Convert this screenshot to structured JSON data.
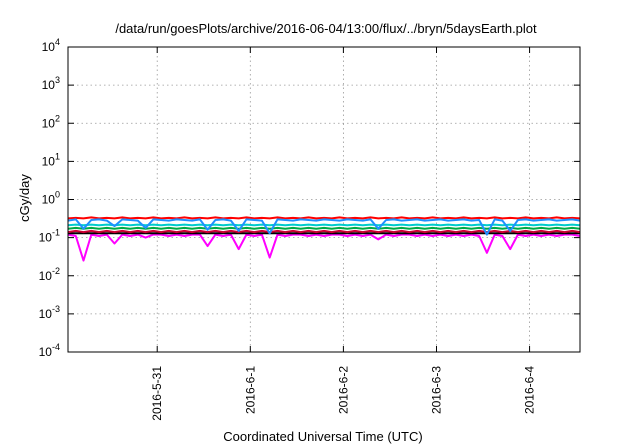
{
  "chart_data": {
    "type": "line",
    "title": "/data/run/goesPlots/archive/2016-06-04/13:00/flux/../bryn/5daysEarth.plot",
    "xlabel": "Coordinated Universal Time (UTC)",
    "ylabel": "cGy/day",
    "yscale": "log",
    "ylim": [
      0.0001,
      10000
    ],
    "xlim": [
      "2016-05-30 01:00",
      "2016-06-04 13:00"
    ],
    "x_ticks": [
      {
        "label": "2016-5-31",
        "value": "2016-05-31"
      },
      {
        "label": "2016-6-1",
        "value": "2016-06-01"
      },
      {
        "label": "2016-6-2",
        "value": "2016-06-02"
      },
      {
        "label": "2016-6-3",
        "value": "2016-06-03"
      },
      {
        "label": "2016-6-4",
        "value": "2016-06-04"
      }
    ],
    "y_ticks": [
      {
        "base": "10",
        "exp": "-4",
        "value": 0.0001
      },
      {
        "base": "10",
        "exp": "-3",
        "value": 0.001
      },
      {
        "base": "10",
        "exp": "-2",
        "value": 0.01
      },
      {
        "base": "10",
        "exp": "-1",
        "value": 0.1
      },
      {
        "base": "10",
        "exp": "0",
        "value": 1
      },
      {
        "base": "10",
        "exp": "1",
        "value": 10
      },
      {
        "base": "10",
        "exp": "2",
        "value": 100
      },
      {
        "base": "10",
        "exp": "3",
        "value": 1000
      },
      {
        "base": "10",
        "exp": "4",
        "value": 10000
      }
    ],
    "grid": true,
    "x": [
      "2016-05-30 01:00",
      "2016-05-30 03:00",
      "2016-05-30 05:00",
      "2016-05-30 07:00",
      "2016-05-30 09:00",
      "2016-05-30 11:00",
      "2016-05-30 13:00",
      "2016-05-30 15:00",
      "2016-05-30 17:00",
      "2016-05-30 19:00",
      "2016-05-30 21:00",
      "2016-05-30 23:00",
      "2016-05-31 01:00",
      "2016-05-31 03:00",
      "2016-05-31 05:00",
      "2016-05-31 07:00",
      "2016-05-31 09:00",
      "2016-05-31 11:00",
      "2016-05-31 13:00",
      "2016-05-31 15:00",
      "2016-05-31 17:00",
      "2016-05-31 19:00",
      "2016-05-31 21:00",
      "2016-05-31 23:00",
      "2016-06-01 01:00",
      "2016-06-01 03:00",
      "2016-06-01 05:00",
      "2016-06-01 07:00",
      "2016-06-01 09:00",
      "2016-06-01 11:00",
      "2016-06-01 13:00",
      "2016-06-01 15:00",
      "2016-06-01 17:00",
      "2016-06-01 19:00",
      "2016-06-01 21:00",
      "2016-06-01 23:00",
      "2016-06-02 01:00",
      "2016-06-02 03:00",
      "2016-06-02 05:00",
      "2016-06-02 07:00",
      "2016-06-02 09:00",
      "2016-06-02 11:00",
      "2016-06-02 13:00",
      "2016-06-02 15:00",
      "2016-06-02 17:00",
      "2016-06-02 19:00",
      "2016-06-02 21:00",
      "2016-06-02 23:00",
      "2016-06-03 01:00",
      "2016-06-03 03:00",
      "2016-06-03 05:00",
      "2016-06-03 07:00",
      "2016-06-03 09:00",
      "2016-06-03 11:00",
      "2016-06-03 13:00",
      "2016-06-03 15:00",
      "2016-06-03 17:00",
      "2016-06-03 19:00",
      "2016-06-03 21:00",
      "2016-06-03 23:00",
      "2016-06-04 01:00",
      "2016-06-04 03:00",
      "2016-06-04 05:00",
      "2016-06-04 07:00",
      "2016-06-04 09:00",
      "2016-06-04 11:00",
      "2016-06-04 13:00"
    ],
    "series": [
      {
        "color": "#ff00ff",
        "values": [
          0.12,
          0.11,
          0.025,
          0.12,
          0.11,
          0.12,
          0.07,
          0.12,
          0.11,
          0.12,
          0.1,
          0.12,
          0.12,
          0.11,
          0.12,
          0.11,
          0.12,
          0.12,
          0.06,
          0.12,
          0.11,
          0.12,
          0.05,
          0.12,
          0.11,
          0.12,
          0.03,
          0.12,
          0.11,
          0.12,
          0.12,
          0.11,
          0.12,
          0.11,
          0.12,
          0.12,
          0.11,
          0.12,
          0.11,
          0.12,
          0.09,
          0.12,
          0.11,
          0.12,
          0.12,
          0.11,
          0.12,
          0.11,
          0.12,
          0.11,
          0.12,
          0.11,
          0.12,
          0.11,
          0.04,
          0.12,
          0.11,
          0.05,
          0.12,
          0.11,
          0.12,
          0.11,
          0.12,
          0.11,
          0.12,
          0.12,
          0.11
        ]
      },
      {
        "color": "#000000",
        "values": [
          0.13,
          0.13,
          0.13,
          0.13,
          0.13,
          0.13,
          0.13,
          0.13,
          0.13,
          0.13,
          0.13,
          0.13,
          0.13,
          0.13,
          0.13,
          0.13,
          0.13,
          0.13,
          0.13,
          0.13,
          0.13,
          0.13,
          0.13,
          0.13,
          0.13,
          0.13,
          0.13,
          0.13,
          0.13,
          0.13,
          0.13,
          0.13,
          0.13,
          0.13,
          0.13,
          0.13,
          0.13,
          0.13,
          0.13,
          0.13,
          0.13,
          0.13,
          0.13,
          0.13,
          0.13,
          0.13,
          0.13,
          0.13,
          0.13,
          0.13,
          0.13,
          0.13,
          0.13,
          0.13,
          0.13,
          0.13,
          0.13,
          0.13,
          0.13,
          0.13,
          0.13,
          0.13,
          0.13,
          0.13,
          0.13,
          0.13,
          0.13
        ]
      },
      {
        "color": "#cc0033",
        "values": [
          0.14,
          0.15,
          0.14,
          0.15,
          0.14,
          0.15,
          0.14,
          0.15,
          0.14,
          0.15,
          0.14,
          0.15,
          0.14,
          0.15,
          0.14,
          0.15,
          0.14,
          0.15,
          0.14,
          0.15,
          0.14,
          0.15,
          0.14,
          0.15,
          0.14,
          0.15,
          0.14,
          0.15,
          0.14,
          0.15,
          0.14,
          0.15,
          0.14,
          0.15,
          0.14,
          0.15,
          0.14,
          0.15,
          0.14,
          0.15,
          0.14,
          0.15,
          0.14,
          0.15,
          0.14,
          0.15,
          0.14,
          0.15,
          0.14,
          0.15,
          0.14,
          0.15,
          0.14,
          0.15,
          0.14,
          0.15,
          0.14,
          0.15,
          0.14,
          0.15,
          0.14,
          0.15,
          0.14,
          0.15,
          0.14,
          0.15,
          0.14
        ]
      },
      {
        "color": "#00aa44",
        "values": [
          0.17,
          0.18,
          0.17,
          0.18,
          0.17,
          0.18,
          0.17,
          0.18,
          0.17,
          0.18,
          0.17,
          0.18,
          0.17,
          0.18,
          0.17,
          0.18,
          0.17,
          0.18,
          0.17,
          0.18,
          0.17,
          0.18,
          0.17,
          0.18,
          0.17,
          0.18,
          0.17,
          0.18,
          0.17,
          0.18,
          0.17,
          0.18,
          0.17,
          0.18,
          0.17,
          0.18,
          0.17,
          0.18,
          0.17,
          0.18,
          0.17,
          0.18,
          0.17,
          0.18,
          0.17,
          0.18,
          0.17,
          0.18,
          0.17,
          0.18,
          0.17,
          0.18,
          0.17,
          0.18,
          0.17,
          0.18,
          0.17,
          0.18,
          0.17,
          0.18,
          0.17,
          0.18,
          0.17,
          0.18,
          0.17,
          0.18,
          0.17
        ]
      },
      {
        "color": "#00cccc",
        "values": [
          0.21,
          0.22,
          0.21,
          0.22,
          0.21,
          0.22,
          0.21,
          0.22,
          0.21,
          0.22,
          0.21,
          0.22,
          0.21,
          0.22,
          0.21,
          0.22,
          0.21,
          0.22,
          0.21,
          0.22,
          0.21,
          0.22,
          0.21,
          0.22,
          0.21,
          0.22,
          0.21,
          0.22,
          0.21,
          0.22,
          0.21,
          0.22,
          0.21,
          0.22,
          0.21,
          0.22,
          0.21,
          0.22,
          0.21,
          0.22,
          0.21,
          0.22,
          0.21,
          0.22,
          0.21,
          0.22,
          0.21,
          0.22,
          0.21,
          0.22,
          0.21,
          0.22,
          0.21,
          0.22,
          0.21,
          0.22,
          0.21,
          0.22,
          0.21,
          0.22,
          0.21,
          0.22,
          0.21,
          0.22,
          0.21,
          0.22,
          0.21
        ]
      },
      {
        "color": "#ff0000",
        "values": [
          0.32,
          0.33,
          0.32,
          0.34,
          0.32,
          0.33,
          0.32,
          0.34,
          0.32,
          0.33,
          0.32,
          0.34,
          0.32,
          0.33,
          0.32,
          0.34,
          0.32,
          0.33,
          0.32,
          0.34,
          0.32,
          0.33,
          0.32,
          0.34,
          0.32,
          0.33,
          0.32,
          0.34,
          0.32,
          0.33,
          0.32,
          0.34,
          0.32,
          0.33,
          0.32,
          0.34,
          0.32,
          0.33,
          0.32,
          0.34,
          0.32,
          0.33,
          0.32,
          0.34,
          0.32,
          0.33,
          0.32,
          0.34,
          0.32,
          0.33,
          0.32,
          0.34,
          0.32,
          0.33,
          0.32,
          0.34,
          0.32,
          0.33,
          0.32,
          0.34,
          0.32,
          0.33,
          0.32,
          0.34,
          0.32,
          0.33,
          0.32
        ]
      },
      {
        "color": "#1e90ff",
        "values": [
          0.28,
          0.3,
          0.17,
          0.29,
          0.3,
          0.28,
          0.2,
          0.3,
          0.29,
          0.28,
          0.18,
          0.3,
          0.29,
          0.28,
          0.3,
          0.29,
          0.28,
          0.3,
          0.16,
          0.29,
          0.3,
          0.28,
          0.15,
          0.3,
          0.29,
          0.28,
          0.13,
          0.3,
          0.29,
          0.28,
          0.3,
          0.29,
          0.28,
          0.3,
          0.29,
          0.28,
          0.3,
          0.29,
          0.28,
          0.3,
          0.17,
          0.29,
          0.3,
          0.28,
          0.29,
          0.3,
          0.28,
          0.29,
          0.3,
          0.28,
          0.29,
          0.3,
          0.28,
          0.29,
          0.12,
          0.3,
          0.28,
          0.15,
          0.29,
          0.3,
          0.28,
          0.29,
          0.3,
          0.28,
          0.29,
          0.3,
          0.28
        ]
      }
    ]
  }
}
